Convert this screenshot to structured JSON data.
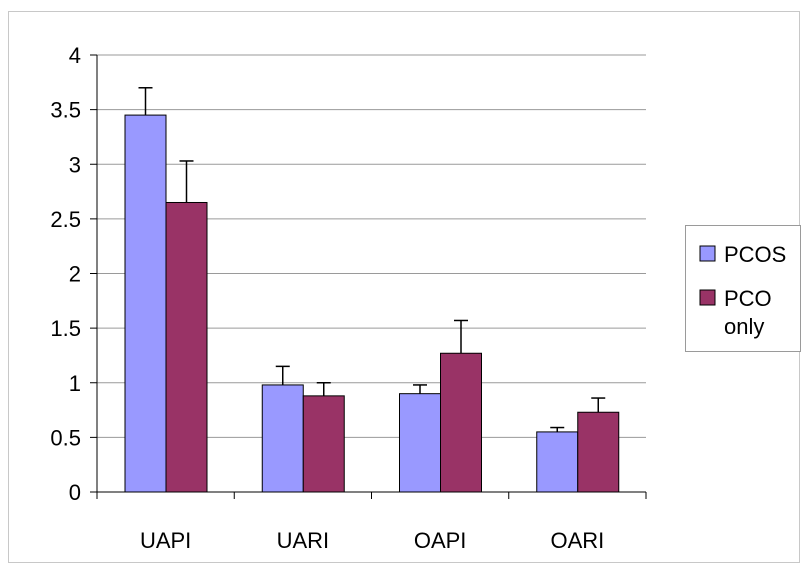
{
  "chart_data": {
    "type": "bar",
    "categories": [
      "UAPI",
      "UARI",
      "OAPI",
      "OARI"
    ],
    "series": [
      {
        "name": "PCOS",
        "values": [
          3.45,
          0.98,
          0.9,
          0.55
        ],
        "errors": [
          0.25,
          0.17,
          0.08,
          0.04
        ],
        "color": "#9999ff"
      },
      {
        "name": "PCO only",
        "name_lines": [
          "PCO",
          "only"
        ],
        "values": [
          2.65,
          0.88,
          1.27,
          0.73
        ],
        "errors": [
          0.38,
          0.12,
          0.3,
          0.13
        ],
        "color": "#993366"
      }
    ],
    "ylim": [
      0,
      4
    ],
    "yticks": [
      "0",
      "0.5",
      "1",
      "1.5",
      "2",
      "2.5",
      "3",
      "3.5",
      "4"
    ],
    "grid": true,
    "legend": "right",
    "title": "",
    "xlabel": "",
    "ylabel": ""
  }
}
